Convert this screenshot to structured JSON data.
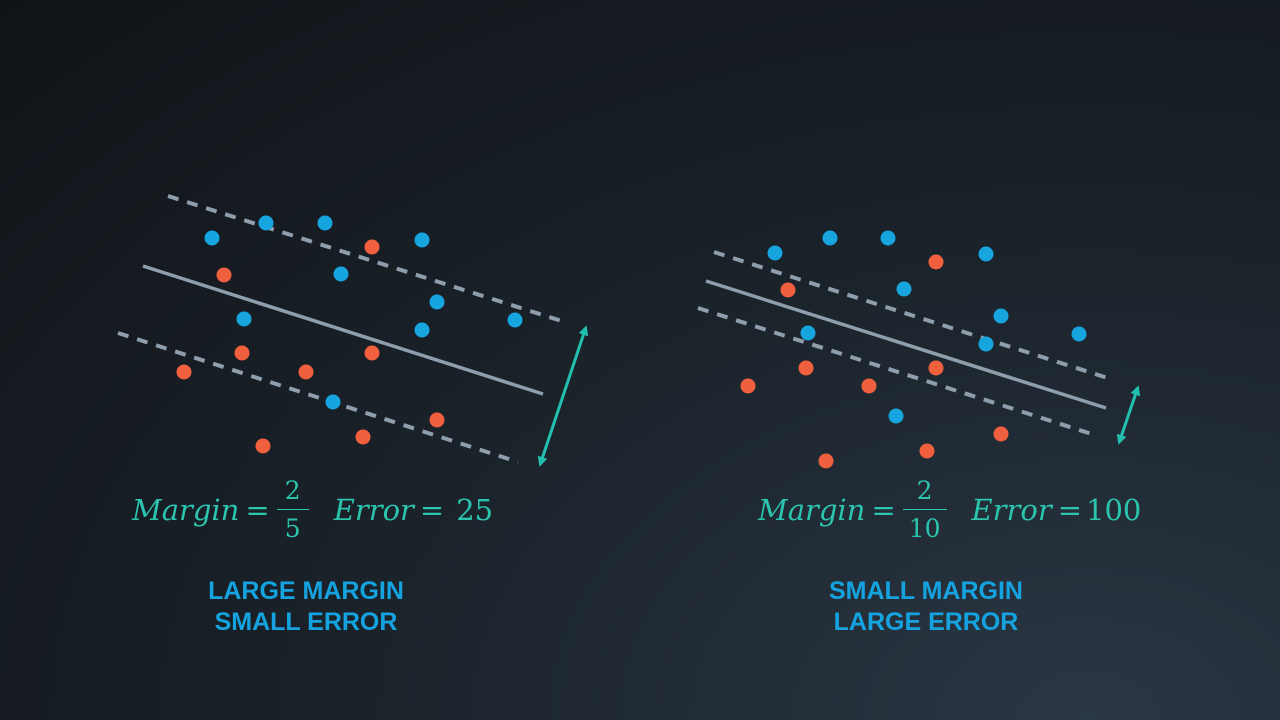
{
  "panels": [
    {
      "id": "large-margin",
      "margin_label": "Margin",
      "margin_numerator": "2",
      "margin_denominator": "5",
      "error_label": "Error",
      "error_value": "25",
      "caption_line1": "LARGE MARGIN",
      "caption_line2": "SMALL ERROR",
      "blue_points": [
        [
          266,
          223
        ],
        [
          325,
          223
        ],
        [
          212,
          238
        ],
        [
          422,
          240
        ],
        [
          341,
          274
        ],
        [
          437,
          302
        ],
        [
          244,
          319
        ],
        [
          422,
          330
        ],
        [
          515,
          320
        ],
        [
          333,
          402
        ]
      ],
      "red_points": [
        [
          372,
          247
        ],
        [
          224,
          275
        ],
        [
          242,
          353
        ],
        [
          372,
          353
        ],
        [
          184,
          372
        ],
        [
          306,
          372
        ],
        [
          437,
          420
        ],
        [
          363,
          437
        ],
        [
          263,
          446
        ]
      ],
      "boundary": [
        [
          143,
          266
        ],
        [
          543,
          394
        ]
      ],
      "margin_upper": [
        [
          168,
          196
        ],
        [
          568,
          323
        ]
      ],
      "margin_lower": [
        [
          118,
          333
        ],
        [
          518,
          462
        ]
      ],
      "margin_arrow": [
        [
          541,
          462
        ],
        [
          585,
          330
        ]
      ]
    },
    {
      "id": "small-margin",
      "margin_label": "Margin",
      "margin_numerator": "2",
      "margin_denominator": "10",
      "error_label": "Error",
      "error_value": "100",
      "caption_line1": "SMALL MARGIN",
      "caption_line2": "LARGE ERROR",
      "blue_points": [
        [
          775,
          253
        ],
        [
          830,
          238
        ],
        [
          888,
          238
        ],
        [
          986,
          254
        ],
        [
          904,
          289
        ],
        [
          1001,
          316
        ],
        [
          808,
          333
        ],
        [
          986,
          344
        ],
        [
          1079,
          334
        ],
        [
          896,
          416
        ]
      ],
      "red_points": [
        [
          936,
          262
        ],
        [
          788,
          290
        ],
        [
          806,
          368
        ],
        [
          936,
          368
        ],
        [
          748,
          386
        ],
        [
          869,
          386
        ],
        [
          1001,
          434
        ],
        [
          927,
          451
        ],
        [
          826,
          461
        ]
      ],
      "boundary": [
        [
          706,
          281
        ],
        [
          1106,
          408
        ]
      ],
      "margin_upper": [
        [
          714,
          252
        ],
        [
          1114,
          380
        ]
      ],
      "margin_lower": [
        [
          698,
          308
        ],
        [
          1098,
          436
        ]
      ],
      "margin_arrow": [
        [
          1120,
          440
        ],
        [
          1137,
          390
        ]
      ]
    }
  ],
  "colors": {
    "blue_point": "#16a5df",
    "red_point": "#f0603e",
    "boundary_line": "#8f9eac",
    "margin_line": "#8f9eac",
    "arrow": "#23bfae",
    "formula": "#2bc4ae",
    "caption": "#15a3e0"
  }
}
